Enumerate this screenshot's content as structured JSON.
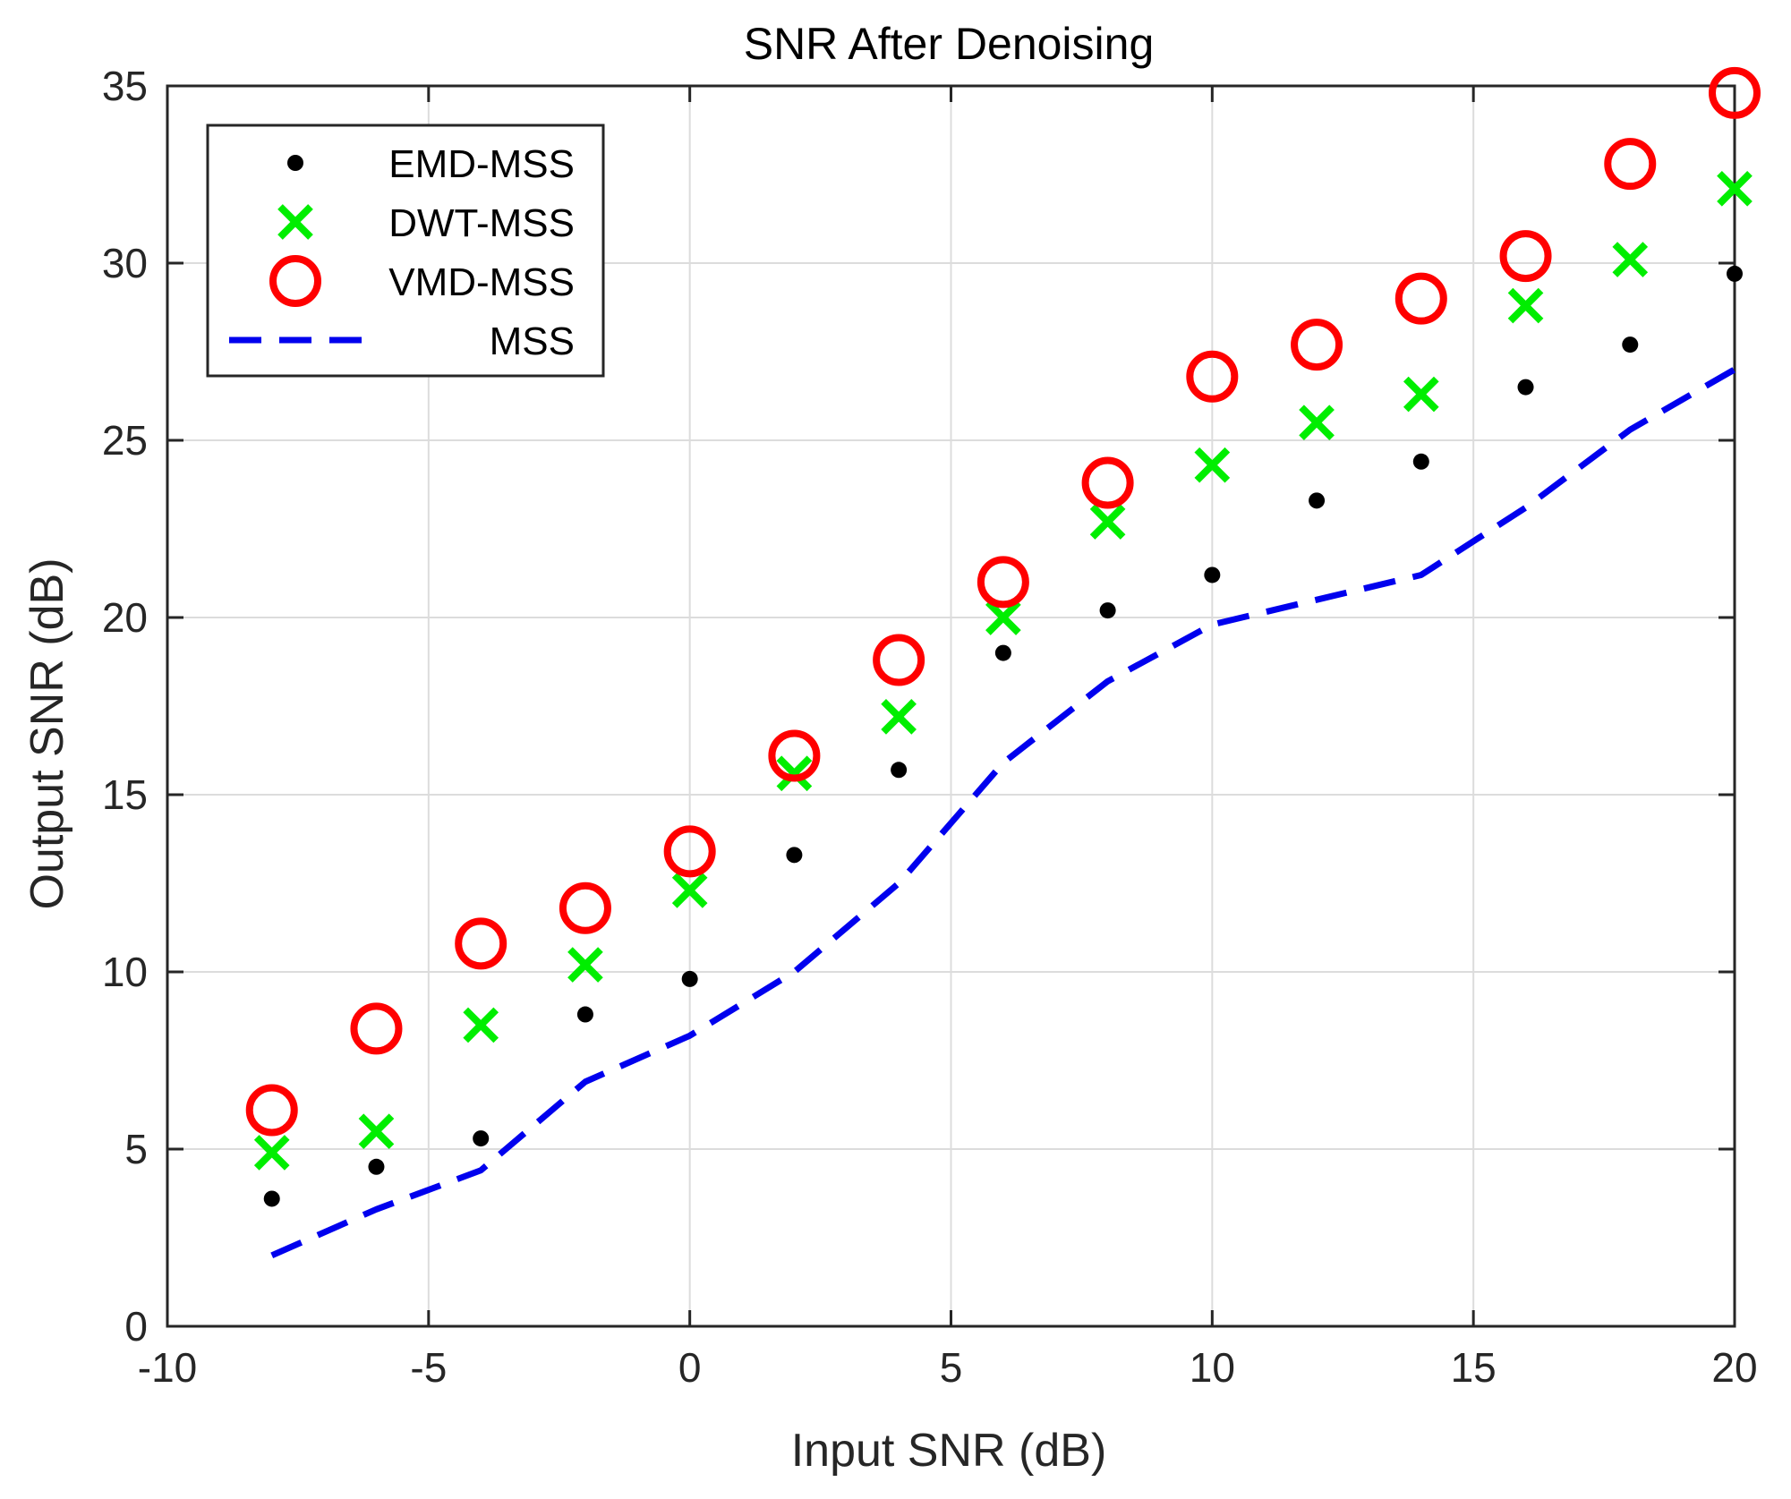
{
  "chart_data": {
    "type": "scatter",
    "title": "SNR After Denoising",
    "xlabel": "Input SNR (dB)",
    "ylabel": "Output SNR (dB)",
    "xlim": [
      -10,
      20
    ],
    "ylim": [
      0,
      35
    ],
    "xticks": [
      -10,
      -5,
      0,
      5,
      10,
      15,
      20
    ],
    "yticks": [
      0,
      5,
      10,
      15,
      20,
      25,
      30,
      35
    ],
    "xtick_labels": [
      "-10",
      "-5",
      "0",
      "5",
      "10",
      "15",
      "20"
    ],
    "ytick_labels": [
      "0",
      "5",
      "10",
      "15",
      "20",
      "25",
      "30",
      "35"
    ],
    "grid": true,
    "legend_position": "top-left",
    "x": [
      -8,
      -6,
      -4,
      -2,
      0,
      2,
      4,
      6,
      8,
      10,
      12,
      14,
      16,
      18,
      20
    ],
    "series": [
      {
        "name": "EMD-MSS",
        "marker": "dot",
        "color": "#000000",
        "values": [
          3.6,
          4.5,
          5.3,
          8.8,
          9.8,
          13.3,
          15.7,
          19.0,
          20.2,
          21.2,
          23.3,
          24.4,
          26.5,
          27.7,
          29.7
        ]
      },
      {
        "name": "DWT-MSS",
        "marker": "x",
        "color": "#00ee00",
        "values": [
          4.9,
          5.5,
          8.5,
          10.2,
          12.3,
          15.6,
          17.2,
          20.0,
          22.7,
          24.3,
          25.5,
          26.3,
          28.8,
          30.1,
          32.1
        ]
      },
      {
        "name": "VMD-MSS",
        "marker": "circle",
        "color": "#ff0000",
        "values": [
          6.1,
          8.4,
          10.8,
          11.8,
          13.4,
          16.1,
          18.8,
          21.0,
          23.8,
          26.8,
          27.7,
          29.0,
          30.2,
          32.8,
          34.8
        ]
      },
      {
        "name": "MSS",
        "marker": "dashed-line",
        "color": "#0000ee",
        "values": [
          2.0,
          3.3,
          4.4,
          6.9,
          8.2,
          10.0,
          12.5,
          15.9,
          18.2,
          19.8,
          20.5,
          21.2,
          23.1,
          25.3,
          27.0
        ]
      }
    ]
  }
}
